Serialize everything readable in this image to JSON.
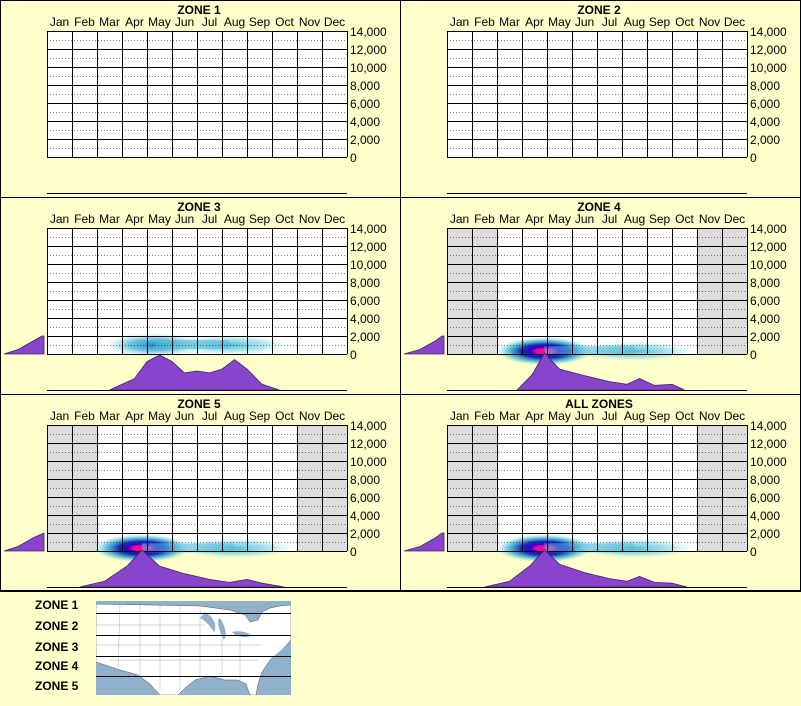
{
  "colors": {
    "background": "#FFFFCC",
    "grid": "#000000",
    "shade": "#DDDDDD",
    "elevation_fill": "#8844CC",
    "map_water": "#8FB1CC",
    "map_land": "#FFFFFF"
  },
  "months": [
    "Jan",
    "Feb",
    "Mar",
    "Apr",
    "May",
    "Jun",
    "Jul",
    "Aug",
    "Sep",
    "Oct",
    "Nov",
    "Dec"
  ],
  "y_ticks": [
    "14,000",
    "12,000",
    "10,000",
    "8,000",
    "6,000",
    "4,000",
    "2,000",
    "0"
  ],
  "chart_data": [
    {
      "type": "heatmap",
      "title": "ZONE 1",
      "x": [
        "Jan",
        "Feb",
        "Mar",
        "Apr",
        "May",
        "Jun",
        "Jul",
        "Aug",
        "Sep",
        "Oct",
        "Nov",
        "Dec"
      ],
      "ylim": [
        0,
        14000
      ],
      "shaded_months": [],
      "hotspots": [],
      "elevation_profile": [],
      "seasonal_profile": []
    },
    {
      "type": "heatmap",
      "title": "ZONE 2",
      "x": [
        "Jan",
        "Feb",
        "Mar",
        "Apr",
        "May",
        "Jun",
        "Jul",
        "Aug",
        "Sep",
        "Oct",
        "Nov",
        "Dec"
      ],
      "ylim": [
        0,
        14000
      ],
      "shaded_months": [],
      "hotspots": [],
      "elevation_profile": [],
      "seasonal_profile": []
    },
    {
      "type": "heatmap",
      "title": "ZONE 3",
      "x": [
        "Jan",
        "Feb",
        "Mar",
        "Apr",
        "May",
        "Jun",
        "Jul",
        "Aug",
        "Sep",
        "Oct",
        "Nov",
        "Dec"
      ],
      "ylim": [
        0,
        14000
      ],
      "shaded_months": [],
      "hotspots": [
        {
          "month": 5.3,
          "elev": 1000,
          "intensity": 0.45
        },
        {
          "month": 8.3,
          "elev": 1000,
          "intensity": 0.3
        }
      ],
      "elevation_profile": [
        [
          0,
          0
        ],
        [
          500,
          0.35
        ],
        [
          1000,
          0.55
        ],
        [
          1500,
          0.75
        ],
        [
          2000,
          0.95
        ]
      ],
      "seasonal_profile": [
        [
          3.5,
          0
        ],
        [
          4.5,
          0.3
        ],
        [
          5.0,
          0.75
        ],
        [
          5.5,
          0.92
        ],
        [
          6.0,
          0.75
        ],
        [
          6.5,
          0.45
        ],
        [
          7.0,
          0.5
        ],
        [
          7.5,
          0.45
        ],
        [
          8.0,
          0.55
        ],
        [
          8.5,
          0.8
        ],
        [
          9.0,
          0.55
        ],
        [
          9.6,
          0.15
        ],
        [
          10.3,
          0
        ]
      ]
    },
    {
      "type": "heatmap",
      "title": "ZONE 4",
      "x": [
        "Jan",
        "Feb",
        "Mar",
        "Apr",
        "May",
        "Jun",
        "Jul",
        "Aug",
        "Sep",
        "Oct",
        "Nov",
        "Dec"
      ],
      "ylim": [
        0,
        14000
      ],
      "shaded_months": [
        "Jan",
        "Feb",
        "Nov",
        "Dec"
      ],
      "hotspots": [
        {
          "month": 4.9,
          "elev": 300,
          "intensity": 1.0
        },
        {
          "month": 8.5,
          "elev": 300,
          "intensity": 0.25
        }
      ],
      "elevation_profile": [
        [
          0,
          0
        ],
        [
          500,
          0.4
        ],
        [
          1000,
          0.6
        ],
        [
          1500,
          0.8
        ],
        [
          2000,
          0.95
        ]
      ],
      "seasonal_profile": [
        [
          3.8,
          0
        ],
        [
          4.4,
          0.4
        ],
        [
          4.9,
          0.97
        ],
        [
          5.5,
          0.55
        ],
        [
          6.5,
          0.38
        ],
        [
          7.5,
          0.22
        ],
        [
          8.2,
          0.15
        ],
        [
          8.7,
          0.3
        ],
        [
          9.3,
          0.12
        ],
        [
          10.0,
          0.15
        ],
        [
          10.5,
          0
        ]
      ]
    },
    {
      "type": "heatmap",
      "title": "ZONE 5",
      "x": [
        "Jan",
        "Feb",
        "Mar",
        "Apr",
        "May",
        "Jun",
        "Jul",
        "Aug",
        "Sep",
        "Oct",
        "Nov",
        "Dec"
      ],
      "ylim": [
        0,
        14000
      ],
      "shaded_months": [
        "Jan",
        "Feb",
        "Nov",
        "Dec"
      ],
      "hotspots": [
        {
          "month": 4.8,
          "elev": 300,
          "intensity": 1.0
        },
        {
          "month": 8.5,
          "elev": 300,
          "intensity": 0.22
        }
      ],
      "elevation_profile": [
        [
          0,
          0
        ],
        [
          500,
          0.35
        ],
        [
          1000,
          0.55
        ],
        [
          1500,
          0.75
        ],
        [
          2000,
          1.0
        ]
      ],
      "seasonal_profile": [
        [
          2.3,
          0
        ],
        [
          3.3,
          0.15
        ],
        [
          4.2,
          0.55
        ],
        [
          4.8,
          0.97
        ],
        [
          5.5,
          0.55
        ],
        [
          6.5,
          0.35
        ],
        [
          7.5,
          0.2
        ],
        [
          8.3,
          0.12
        ],
        [
          9.0,
          0.2
        ],
        [
          9.6,
          0.1
        ],
        [
          10.5,
          0
        ]
      ]
    },
    {
      "type": "heatmap",
      "title": "ALL ZONES",
      "x": [
        "Jan",
        "Feb",
        "Mar",
        "Apr",
        "May",
        "Jun",
        "Jul",
        "Aug",
        "Sep",
        "Oct",
        "Nov",
        "Dec"
      ],
      "ylim": [
        0,
        14000
      ],
      "shaded_months": [
        "Jan",
        "Feb",
        "Nov",
        "Dec"
      ],
      "hotspots": [
        {
          "month": 4.9,
          "elev": 300,
          "intensity": 1.0
        },
        {
          "month": 8.5,
          "elev": 300,
          "intensity": 0.25
        }
      ],
      "elevation_profile": [
        [
          0,
          0
        ],
        [
          500,
          0.4
        ],
        [
          1000,
          0.6
        ],
        [
          1500,
          0.8
        ],
        [
          2000,
          0.95
        ]
      ],
      "seasonal_profile": [
        [
          2.5,
          0
        ],
        [
          3.5,
          0.15
        ],
        [
          4.3,
          0.55
        ],
        [
          4.9,
          0.97
        ],
        [
          5.5,
          0.6
        ],
        [
          6.5,
          0.38
        ],
        [
          7.5,
          0.22
        ],
        [
          8.2,
          0.15
        ],
        [
          8.7,
          0.28
        ],
        [
          9.3,
          0.12
        ],
        [
          10.0,
          0.1
        ],
        [
          10.6,
          0
        ]
      ]
    }
  ],
  "legend": {
    "zones": [
      "ZONE 1",
      "ZONE 2",
      "ZONE 3",
      "ZONE 4",
      "ZONE 5"
    ]
  }
}
